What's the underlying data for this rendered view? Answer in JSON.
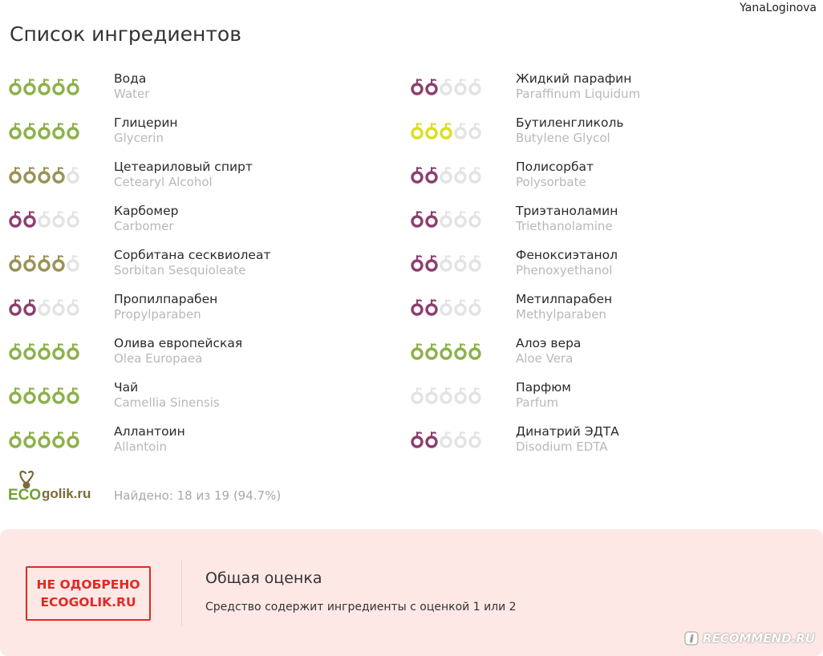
{
  "header": {
    "username": "YanaLoginova",
    "title": "Список ингредиентов"
  },
  "colors": {
    "green": "#8cb14a",
    "olive": "#9b9157",
    "purple": "#8c3f6e",
    "yellow": "#d9df1f",
    "empty": "#e3e3e3",
    "stamp_red": "#e02a24",
    "panel_bg": "#fde8e6"
  },
  "ingredients_left": [
    {
      "name_ru": "Вода",
      "name_lat": "Water",
      "rating": 5,
      "color": "green"
    },
    {
      "name_ru": "Глицерин",
      "name_lat": "Glycerin",
      "rating": 5,
      "color": "green"
    },
    {
      "name_ru": "Цетеариловый спирт",
      "name_lat": "Cetearyl Alcohol",
      "rating": 4,
      "color": "olive"
    },
    {
      "name_ru": "Карбомер",
      "name_lat": "Carbomer",
      "rating": 2,
      "color": "purple"
    },
    {
      "name_ru": "Сорбитана сесквиолеат",
      "name_lat": "Sorbitan Sesquioleate",
      "rating": 4,
      "color": "olive"
    },
    {
      "name_ru": "Пропилпарабен",
      "name_lat": "Propylparaben",
      "rating": 2,
      "color": "purple"
    },
    {
      "name_ru": "Олива европейская",
      "name_lat": "Olea Europaea",
      "rating": 5,
      "color": "green"
    },
    {
      "name_ru": "Чай",
      "name_lat": "Camellia Sinensis",
      "rating": 5,
      "color": "green"
    },
    {
      "name_ru": "Аллантоин",
      "name_lat": "Allantoin",
      "rating": 5,
      "color": "green"
    }
  ],
  "ingredients_right": [
    {
      "name_ru": "Жидкий парафин",
      "name_lat": "Paraffinum Liquidum",
      "rating": 2,
      "color": "purple"
    },
    {
      "name_ru": "Бутиленгликоль",
      "name_lat": "Butylene Glycol",
      "rating": 3,
      "color": "yellow"
    },
    {
      "name_ru": "Полисорбат",
      "name_lat": "Polysorbate",
      "rating": 2,
      "color": "purple"
    },
    {
      "name_ru": "Триэтаноламин",
      "name_lat": "Triethanolamine",
      "rating": 2,
      "color": "purple"
    },
    {
      "name_ru": "Феноксиэтанол",
      "name_lat": "Phenoxyethanol",
      "rating": 2,
      "color": "purple"
    },
    {
      "name_ru": "Метилпарабен",
      "name_lat": "Methylparaben",
      "rating": 2,
      "color": "purple"
    },
    {
      "name_ru": "Алоэ вера",
      "name_lat": "Aloe Vera",
      "rating": 5,
      "color": "green"
    },
    {
      "name_ru": "Парфюм",
      "name_lat": "Parfum",
      "rating": 0,
      "color": "empty"
    },
    {
      "name_ru": "Динатрий ЭДТА",
      "name_lat": "Disodium EDTA",
      "rating": 2,
      "color": "purple"
    }
  ],
  "footer": {
    "logo_text_eco": "ECO",
    "logo_text_rest": "golik.ru",
    "found_text": "Найдено: 18 из 19 (94.7%)"
  },
  "verdict": {
    "stamp_line1": "НЕ ОДОБРЕНО",
    "stamp_line2": "ECOGOLIK.RU",
    "title": "Общая оценка",
    "description": "Средство содержит ингредиенты с оценкой 1 или 2"
  },
  "watermark": {
    "text": "RECOMMEND.RU"
  }
}
